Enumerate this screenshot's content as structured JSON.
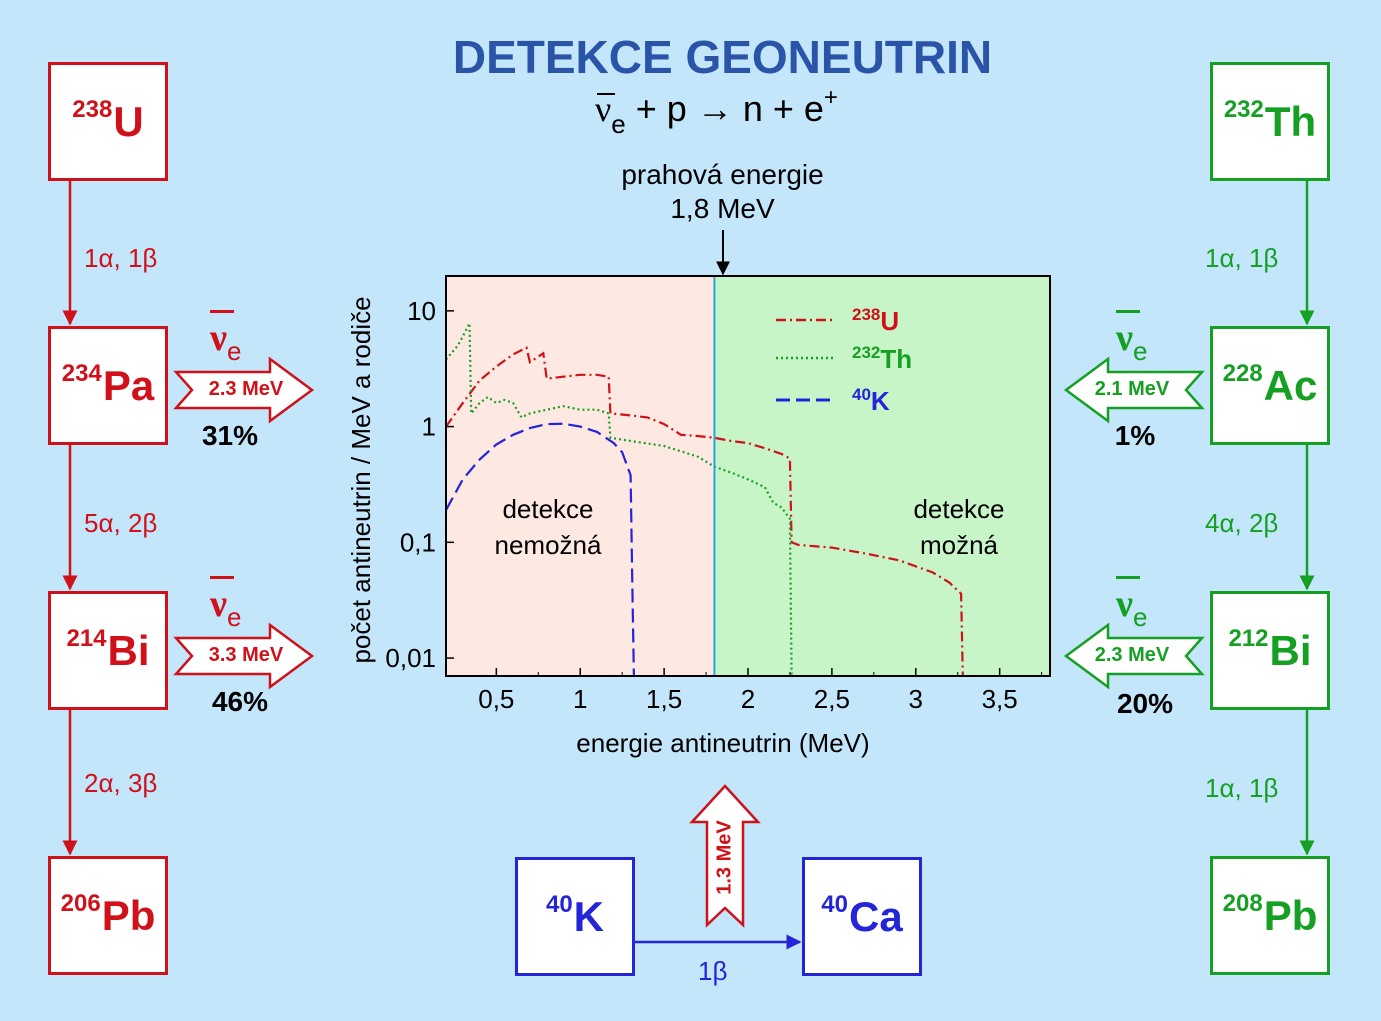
{
  "title": "DETEKCE GEONEUTRIN",
  "reaction": {
    "nu": "ν",
    "nu_sub": "e",
    "rest": "+ p → n + e",
    "sup": "+"
  },
  "threshold": {
    "line1": "prahová energie",
    "line2": "1,8 MeV"
  },
  "uranium_chain": {
    "nodes": [
      {
        "mass": "238",
        "symbol": "U"
      },
      {
        "mass": "234",
        "symbol": "Pa"
      },
      {
        "mass": "214",
        "symbol": "Bi"
      },
      {
        "mass": "206",
        "symbol": "Pb"
      }
    ],
    "steps": [
      "1α, 1β",
      "5α, 2β",
      "2α, 3β"
    ],
    "emissions": [
      {
        "nu": "ν",
        "sub": "e",
        "energy": "2.3 MeV",
        "percent": "31%"
      },
      {
        "nu": "ν",
        "sub": "e",
        "energy": "3.3 MeV",
        "percent": "46%"
      }
    ],
    "color": "#d0111a"
  },
  "thorium_chain": {
    "nodes": [
      {
        "mass": "232",
        "symbol": "Th"
      },
      {
        "mass": "228",
        "symbol": "Ac"
      },
      {
        "mass": "212",
        "symbol": "Bi"
      },
      {
        "mass": "208",
        "symbol": "Pb"
      }
    ],
    "steps": [
      "1α, 1β",
      "4α, 2β",
      "1α, 1β"
    ],
    "emissions": [
      {
        "nu": "ν",
        "sub": "e",
        "energy": "2.1 MeV",
        "percent": "1%"
      },
      {
        "nu": "ν",
        "sub": "e",
        "energy": "2.3 MeV",
        "percent": "20%"
      }
    ],
    "color": "#16a023"
  },
  "potassium": {
    "from": {
      "mass": "40",
      "symbol": "K"
    },
    "to": {
      "mass": "40",
      "symbol": "Ca"
    },
    "step": "1β",
    "energy": "1.3 MeV",
    "color": "#2424d8"
  },
  "chart_data": {
    "type": "line",
    "title": "",
    "xlabel": "energie antineutrin (MeV)",
    "ylabel": "počet antineutrin / MeV a rodiče",
    "xlim": [
      0.2,
      3.8
    ],
    "ylim": [
      0.007,
      20
    ],
    "yscale": "log",
    "x_ticks": [
      {
        "v": 0.5,
        "label": "0,5"
      },
      {
        "v": 1,
        "label": "1"
      },
      {
        "v": 1.5,
        "label": "1,5"
      },
      {
        "v": 2,
        "label": "2"
      },
      {
        "v": 2.5,
        "label": "2,5"
      },
      {
        "v": 3,
        "label": "3"
      },
      {
        "v": 3.5,
        "label": "3,5"
      }
    ],
    "y_ticks": [
      {
        "v": 10,
        "label": "10"
      },
      {
        "v": 1,
        "label": "1"
      },
      {
        "v": 0.1,
        "label": "0,1"
      },
      {
        "v": 0.01,
        "label": "0,01"
      }
    ],
    "threshold_x": 1.8,
    "regions": [
      {
        "label_line1": "detekce",
        "label_line2": "nemožná",
        "color": "#fde8e2"
      },
      {
        "label_line1": "detekce",
        "label_line2": "možná",
        "color": "#c8f5c8"
      }
    ],
    "legend_position": "top-right",
    "series": [
      {
        "name_mass": "238",
        "name_symbol": "U",
        "color": "#d0111a",
        "dash": "10,4,2,4",
        "x": [
          0.2,
          0.3,
          0.4,
          0.5,
          0.6,
          0.68,
          0.7,
          0.78,
          0.8,
          0.9,
          1.0,
          1.1,
          1.17,
          1.18,
          1.3,
          1.4,
          1.5,
          1.6,
          1.7,
          1.8,
          1.9,
          2.0,
          2.1,
          2.2,
          2.25,
          2.26,
          2.3,
          2.5,
          2.7,
          2.9,
          3.1,
          3.2,
          3.27,
          3.28
        ],
        "y": [
          1.0,
          1.6,
          2.5,
          3.3,
          4.2,
          4.8,
          3.6,
          4.3,
          2.6,
          2.7,
          2.8,
          2.8,
          2.7,
          1.3,
          1.25,
          1.2,
          1.05,
          0.85,
          0.83,
          0.8,
          0.75,
          0.72,
          0.65,
          0.58,
          0.53,
          0.1,
          0.095,
          0.09,
          0.08,
          0.07,
          0.055,
          0.045,
          0.036,
          0.007
        ]
      },
      {
        "name_mass": "232",
        "name_symbol": "Th",
        "color": "#16a023",
        "dash": "2,3",
        "x": [
          0.2,
          0.27,
          0.3,
          0.34,
          0.35,
          0.4,
          0.45,
          0.5,
          0.55,
          0.6,
          0.65,
          0.7,
          0.8,
          0.9,
          1.0,
          1.1,
          1.17,
          1.18,
          1.3,
          1.5,
          1.7,
          1.8,
          1.9,
          2.0,
          2.1,
          2.15,
          2.2,
          2.25,
          2.26
        ],
        "y": [
          3.8,
          5.0,
          6.0,
          7.8,
          1.3,
          1.6,
          1.8,
          1.6,
          1.7,
          1.6,
          1.2,
          1.3,
          1.4,
          1.5,
          1.4,
          1.4,
          1.3,
          0.8,
          0.75,
          0.68,
          0.55,
          0.45,
          0.4,
          0.35,
          0.3,
          0.22,
          0.2,
          0.16,
          0.007
        ]
      },
      {
        "name_mass": "40",
        "name_symbol": "K",
        "color": "#2424d8",
        "dash": "14,6",
        "x": [
          0.2,
          0.3,
          0.4,
          0.5,
          0.6,
          0.7,
          0.8,
          0.9,
          1.0,
          1.1,
          1.2,
          1.25,
          1.3,
          1.31,
          1.32
        ],
        "y": [
          0.19,
          0.35,
          0.52,
          0.7,
          0.85,
          0.97,
          1.05,
          1.06,
          1.0,
          0.9,
          0.72,
          0.6,
          0.38,
          0.05,
          0.007
        ]
      }
    ]
  }
}
